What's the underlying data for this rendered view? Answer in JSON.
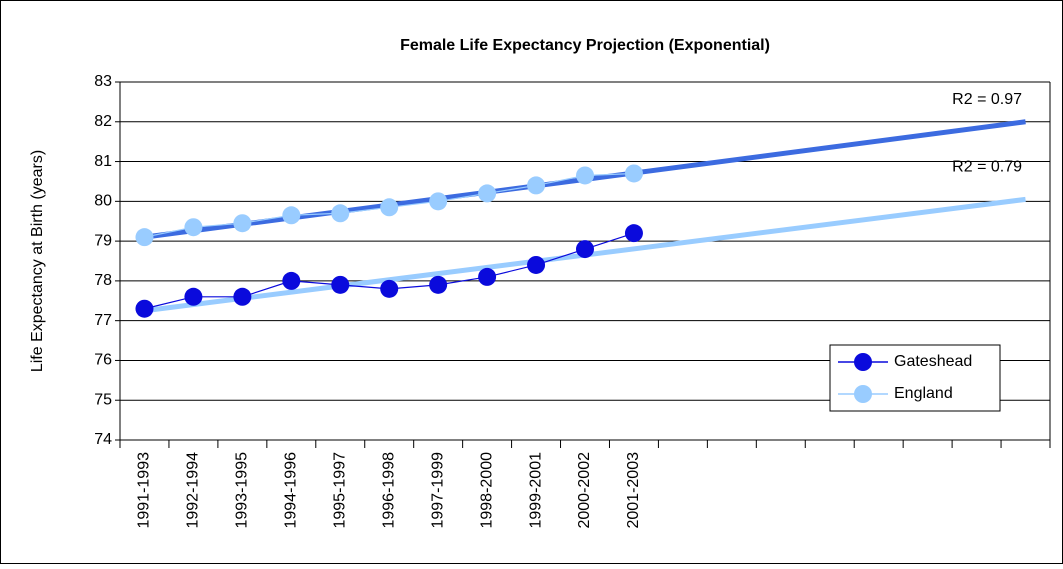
{
  "chart_data": {
    "type": "line",
    "title": "Female Life Expectancy Projection (Exponential)",
    "y_label": "Life Expectancy at Birth (years)",
    "categories": [
      "1991-1993",
      "1992-1994",
      "1993-1995",
      "1994-1996",
      "1995-1997",
      "1996-1998",
      "1997-1999",
      "1998-2000",
      "1999-2001",
      "2000-2002",
      "2001-2003",
      null,
      null,
      null,
      null,
      null,
      null,
      null,
      null
    ],
    "series": [
      {
        "name": "Gateshead",
        "color": "#0a0adc",
        "values": [
          77.3,
          77.6,
          77.6,
          78.0,
          77.9,
          77.8,
          77.9,
          78.1,
          78.4,
          78.8,
          79.2,
          null,
          null,
          null,
          null,
          null,
          null,
          null,
          null
        ]
      },
      {
        "name": "England",
        "color": "#99ccff",
        "values": [
          79.1,
          79.35,
          79.45,
          79.65,
          79.7,
          79.85,
          80.0,
          80.2,
          80.4,
          80.65,
          80.7,
          null,
          null,
          null,
          null,
          null,
          null,
          null,
          null
        ]
      }
    ],
    "trendlines": [
      {
        "color": "#3c6be0",
        "values": [
          79.1,
          82.0
        ],
        "label": "R2 = 0.97"
      },
      {
        "color": "#99ccff",
        "values": [
          77.25,
          80.05
        ],
        "label": "R2 = 0.79"
      }
    ],
    "ylim": [
      74,
      83
    ],
    "yticks": [
      74,
      75,
      76,
      77,
      78,
      79,
      80,
      81,
      82,
      83
    ],
    "grid": true,
    "legend": "lower right"
  }
}
